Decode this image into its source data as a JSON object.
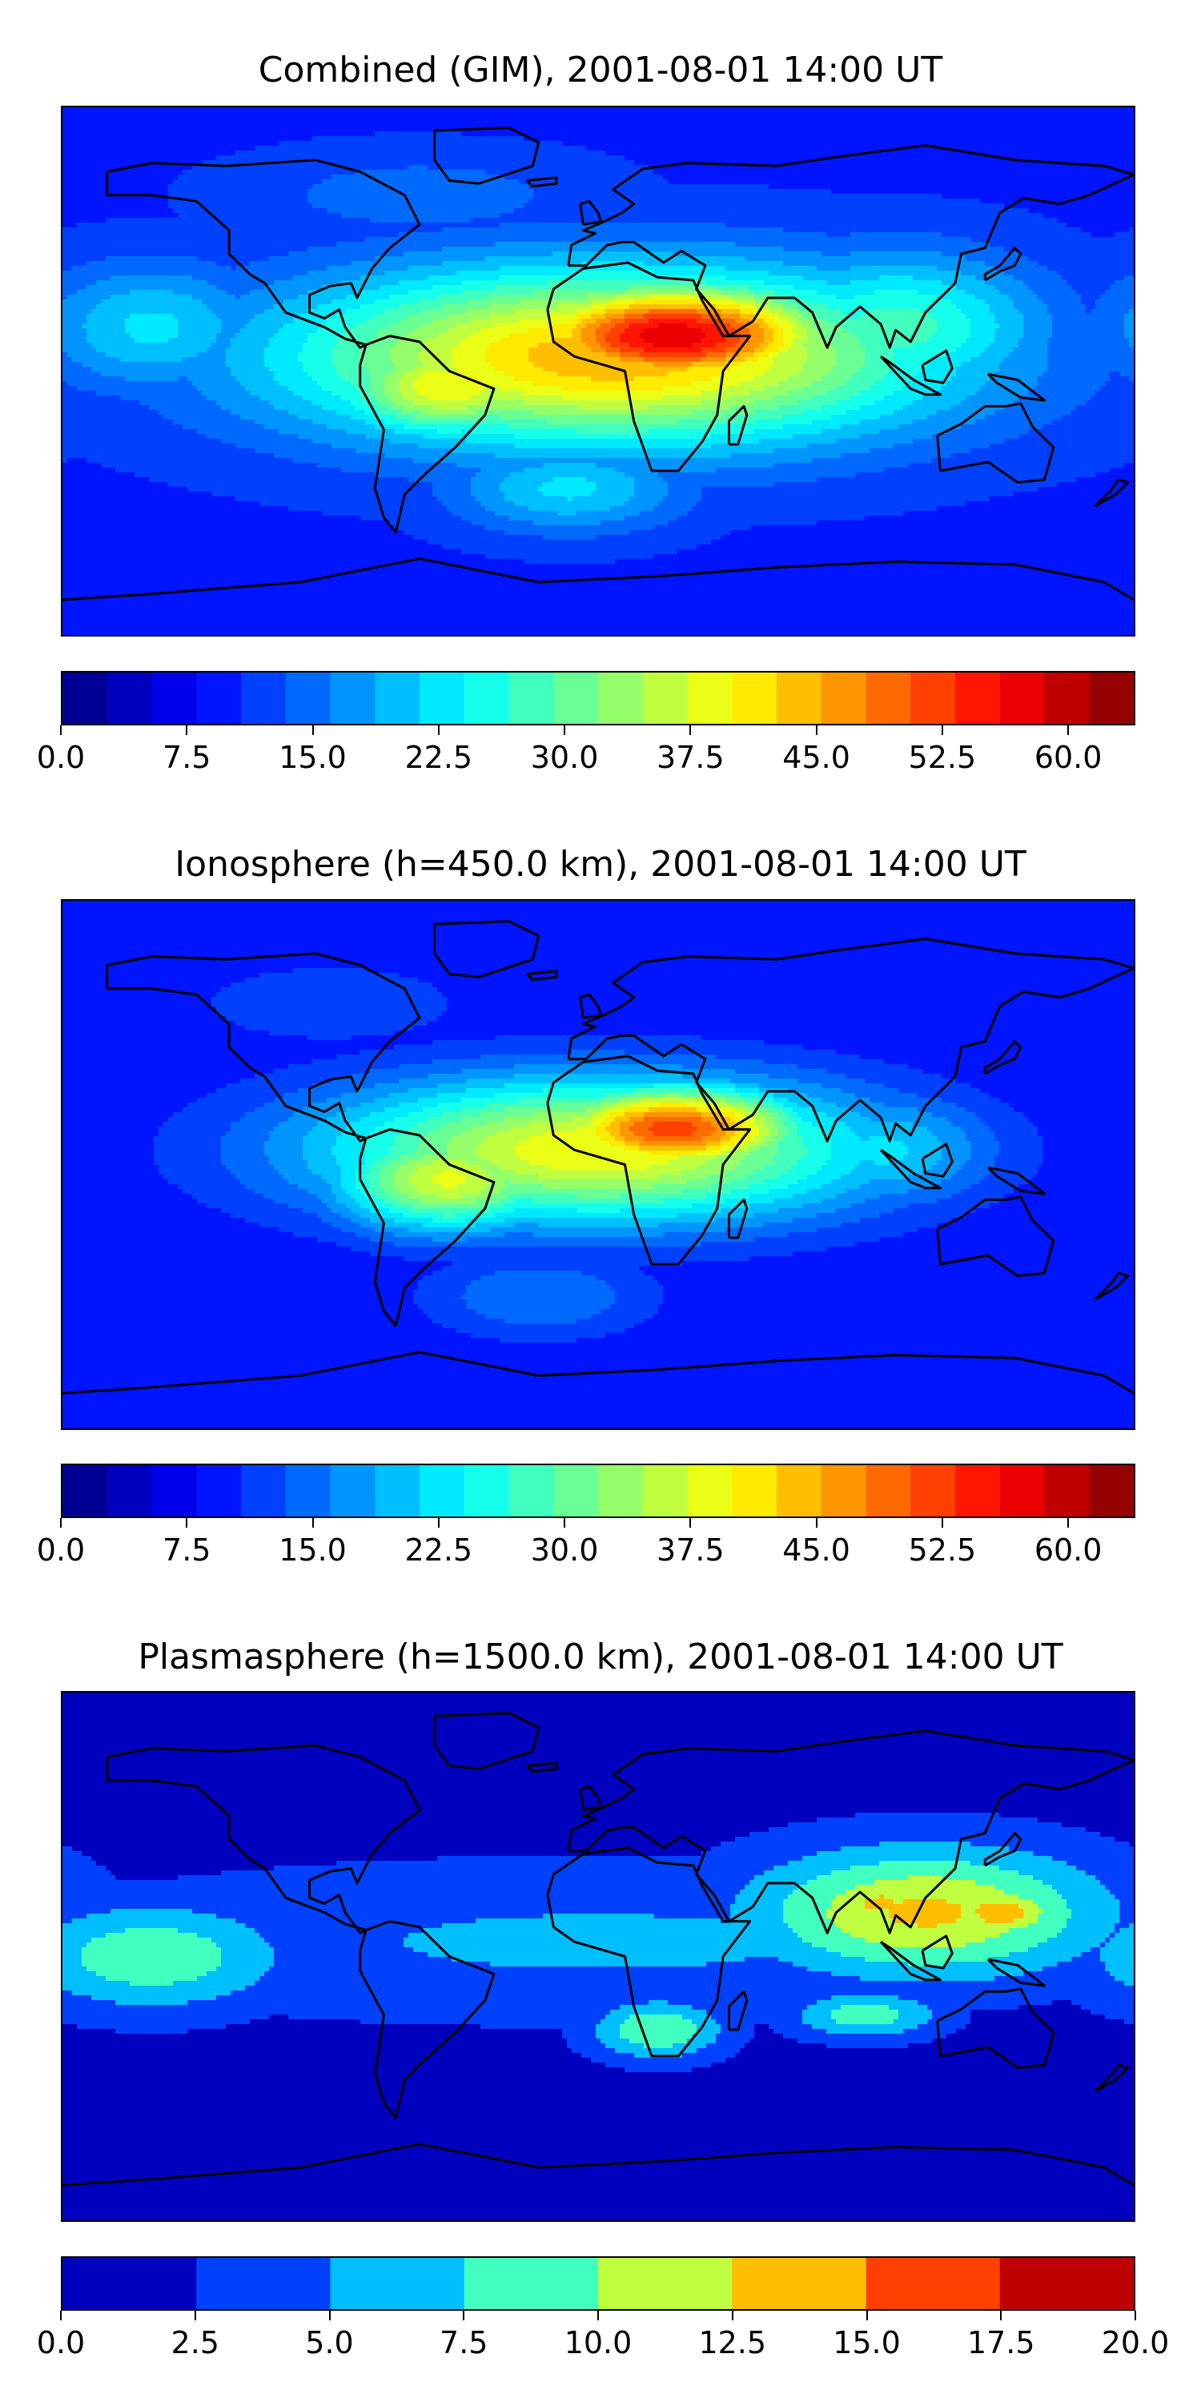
{
  "chart_data": [
    {
      "type": "heatmap",
      "title": "Combined (GIM), 2001-08-01 14:00 UT",
      "xlabel": "",
      "ylabel": "",
      "colorbar": {
        "vmin": 0.0,
        "vmax": 64.0,
        "levels": 24,
        "ticks": [
          "0.0",
          "7.5",
          "15.0",
          "22.5",
          "30.0",
          "37.5",
          "45.0",
          "52.5",
          "60.0"
        ],
        "tick_values": [
          0.0,
          7.5,
          15.0,
          22.5,
          30.0,
          37.5,
          45.0,
          52.5,
          60.0
        ],
        "colormap": "jet"
      },
      "background_level": 10,
      "features": [
        {
          "lon": 5,
          "lat": 5,
          "value": 45,
          "rlon": 110,
          "rlat": 30
        },
        {
          "lon": 25,
          "lat": 12,
          "value": 58,
          "rlon": 55,
          "rlat": 18
        },
        {
          "lon": -50,
          "lat": -5,
          "value": 40,
          "rlon": 40,
          "rlat": 18
        },
        {
          "lon": 100,
          "lat": 15,
          "value": 28,
          "rlon": 50,
          "rlat": 25
        },
        {
          "lon": -150,
          "lat": 15,
          "value": 22,
          "rlon": 40,
          "rlat": 22
        },
        {
          "lon": -10,
          "lat": -40,
          "value": 22,
          "rlon": 40,
          "rlat": 15
        },
        {
          "lon": -60,
          "lat": 60,
          "value": 15,
          "rlon": 60,
          "rlat": 15
        }
      ]
    },
    {
      "type": "heatmap",
      "title": "Ionosphere  (h=450.0 km), 2001-08-01 14:00 UT",
      "xlabel": "",
      "ylabel": "",
      "colorbar": {
        "vmin": 0.0,
        "vmax": 64.0,
        "levels": 24,
        "ticks": [
          "0.0",
          "7.5",
          "15.0",
          "22.5",
          "30.0",
          "37.5",
          "45.0",
          "52.5",
          "60.0"
        ],
        "tick_values": [
          0.0,
          7.5,
          15.0,
          22.5,
          30.0,
          37.5,
          45.0,
          52.5,
          60.0
        ],
        "colormap": "jet"
      },
      "background_level": 8,
      "features": [
        {
          "lon": 0,
          "lat": 5,
          "value": 40,
          "rlon": 95,
          "rlat": 25
        },
        {
          "lon": 25,
          "lat": 12,
          "value": 52,
          "rlon": 45,
          "rlat": 15
        },
        {
          "lon": -50,
          "lat": -5,
          "value": 38,
          "rlon": 40,
          "rlat": 18
        },
        {
          "lon": 95,
          "lat": 5,
          "value": 22,
          "rlon": 40,
          "rlat": 20
        },
        {
          "lon": -20,
          "lat": -45,
          "value": 16,
          "rlon": 40,
          "rlat": 15
        },
        {
          "lon": -90,
          "lat": 55,
          "value": 13,
          "rlon": 50,
          "rlat": 15
        }
      ]
    },
    {
      "type": "heatmap",
      "title": "Plasmasphere (h=1500.0 km), 2001-08-01 14:00 UT",
      "xlabel": "",
      "ylabel": "",
      "colorbar": {
        "vmin": 0.0,
        "vmax": 20.0,
        "levels": 8,
        "ticks": [
          "0.0",
          "2.5",
          "5.0",
          "7.5",
          "10.0",
          "12.5",
          "15.0",
          "17.5",
          "20.0"
        ],
        "tick_values": [
          0.0,
          2.5,
          5.0,
          7.5,
          10.0,
          12.5,
          15.0,
          17.5,
          20.0
        ],
        "colormap": "jet"
      },
      "background_level": 1.5,
      "features": [
        {
          "lon": 0,
          "lat": 5,
          "value": 5.5,
          "rlon": 180,
          "rlat": 25
        },
        {
          "lon": 110,
          "lat": 15,
          "value": 13,
          "rlon": 60,
          "rlat": 22
        },
        {
          "lon": 135,
          "lat": 15,
          "value": 14,
          "rlon": 22,
          "rlat": 10
        },
        {
          "lon": 95,
          "lat": 18,
          "value": 13.5,
          "rlon": 18,
          "rlat": 8
        },
        {
          "lon": -150,
          "lat": 0,
          "value": 9.5,
          "rlon": 45,
          "rlat": 18
        },
        {
          "lon": 20,
          "lat": -25,
          "value": 10,
          "rlon": 22,
          "rlat": 10
        },
        {
          "lon": 90,
          "lat": -20,
          "value": 9,
          "rlon": 25,
          "rlat": 8
        },
        {
          "lon": -50,
          "lat": -20,
          "value": 2,
          "rlon": 20,
          "rlat": 25
        },
        {
          "lon": 0,
          "lat": 60,
          "value": 1.5,
          "rlon": 100,
          "rlat": 12
        }
      ]
    }
  ],
  "coastline": {
    "north_america": [
      [
        -165,
        68
      ],
      [
        -150,
        71
      ],
      [
        -125,
        70
      ],
      [
        -95,
        72
      ],
      [
        -80,
        68
      ],
      [
        -65,
        60
      ],
      [
        -60,
        50
      ],
      [
        -70,
        42
      ],
      [
        -76,
        35
      ],
      [
        -81,
        25
      ],
      [
        -83,
        30
      ],
      [
        -90,
        29
      ],
      [
        -97,
        26
      ],
      [
        -97,
        20
      ],
      [
        -92,
        18
      ],
      [
        -87,
        21
      ],
      [
        -85,
        15
      ],
      [
        -80,
        8
      ],
      [
        -78,
        9
      ],
      [
        -85,
        11
      ],
      [
        -92,
        15
      ],
      [
        -105,
        20
      ],
      [
        -112,
        30
      ],
      [
        -117,
        33
      ],
      [
        -124,
        40
      ],
      [
        -124,
        48
      ],
      [
        -135,
        58
      ],
      [
        -150,
        60
      ],
      [
        -165,
        60
      ],
      [
        -165,
        68
      ]
    ],
    "greenland": [
      [
        -55,
        82
      ],
      [
        -30,
        83
      ],
      [
        -20,
        78
      ],
      [
        -22,
        70
      ],
      [
        -40,
        64
      ],
      [
        -50,
        65
      ],
      [
        -55,
        72
      ],
      [
        -55,
        82
      ]
    ],
    "south_america": [
      [
        -78,
        9
      ],
      [
        -70,
        12
      ],
      [
        -60,
        10
      ],
      [
        -50,
        0
      ],
      [
        -35,
        -6
      ],
      [
        -38,
        -15
      ],
      [
        -48,
        -26
      ],
      [
        -58,
        -35
      ],
      [
        -65,
        -42
      ],
      [
        -68,
        -55
      ],
      [
        -72,
        -50
      ],
      [
        -75,
        -40
      ],
      [
        -72,
        -20
      ],
      [
        -80,
        -5
      ],
      [
        -80,
        2
      ],
      [
        -78,
        9
      ]
    ],
    "africa": [
      [
        -17,
        21
      ],
      [
        -15,
        28
      ],
      [
        -5,
        35
      ],
      [
        10,
        37
      ],
      [
        20,
        32
      ],
      [
        32,
        31
      ],
      [
        35,
        24
      ],
      [
        42,
        12
      ],
      [
        51,
        12
      ],
      [
        42,
        0
      ],
      [
        40,
        -15
      ],
      [
        35,
        -24
      ],
      [
        27,
        -34
      ],
      [
        18,
        -34
      ],
      [
        12,
        -17
      ],
      [
        9,
        0
      ],
      [
        -8,
        5
      ],
      [
        -15,
        10
      ],
      [
        -17,
        21
      ]
    ],
    "eurasia": [
      [
        -10,
        36
      ],
      [
        -9,
        43
      ],
      [
        -1,
        47
      ],
      [
        -5,
        48
      ],
      [
        2,
        51
      ],
      [
        8,
        54
      ],
      [
        12,
        57
      ],
      [
        5,
        62
      ],
      [
        15,
        69
      ],
      [
        30,
        71
      ],
      [
        60,
        70
      ],
      [
        80,
        73
      ],
      [
        110,
        77
      ],
      [
        140,
        72
      ],
      [
        170,
        70
      ],
      [
        180,
        67
      ],
      [
        165,
        60
      ],
      [
        155,
        57
      ],
      [
        143,
        59
      ],
      [
        135,
        54
      ],
      [
        130,
        42
      ],
      [
        122,
        40
      ],
      [
        120,
        30
      ],
      [
        110,
        20
      ],
      [
        105,
        10
      ],
      [
        100,
        14
      ],
      [
        98,
        8
      ],
      [
        95,
        16
      ],
      [
        88,
        22
      ],
      [
        80,
        15
      ],
      [
        77,
        8
      ],
      [
        72,
        20
      ],
      [
        66,
        25
      ],
      [
        57,
        25
      ],
      [
        52,
        17
      ],
      [
        44,
        12
      ],
      [
        39,
        21
      ],
      [
        33,
        28
      ],
      [
        36,
        36
      ],
      [
        28,
        41
      ],
      [
        22,
        37
      ],
      [
        12,
        44
      ],
      [
        8,
        44
      ],
      [
        3,
        43
      ],
      [
        -4,
        36
      ],
      [
        -10,
        36
      ]
    ],
    "australia": [
      [
        114,
        -22
      ],
      [
        122,
        -18
      ],
      [
        130,
        -12
      ],
      [
        137,
        -12
      ],
      [
        142,
        -11
      ],
      [
        146,
        -19
      ],
      [
        153,
        -26
      ],
      [
        150,
        -37
      ],
      [
        141,
        -38
      ],
      [
        131,
        -31
      ],
      [
        115,
        -34
      ],
      [
        114,
        -22
      ]
    ],
    "antarctica": [
      [
        -180,
        -78
      ],
      [
        -150,
        -76
      ],
      [
        -100,
        -72
      ],
      [
        -60,
        -64
      ],
      [
        -20,
        -72
      ],
      [
        20,
        -70
      ],
      [
        60,
        -67
      ],
      [
        100,
        -65
      ],
      [
        140,
        -66
      ],
      [
        170,
        -72
      ],
      [
        180,
        -78
      ]
    ],
    "uk": [
      [
        -5,
        50
      ],
      [
        1,
        51
      ],
      [
        0,
        54
      ],
      [
        -3,
        58
      ],
      [
        -6,
        57
      ],
      [
        -5,
        50
      ]
    ],
    "japan": [
      [
        130,
        31
      ],
      [
        135,
        34
      ],
      [
        140,
        36
      ],
      [
        142,
        40
      ],
      [
        140,
        42
      ],
      [
        135,
        36
      ],
      [
        130,
        33
      ],
      [
        130,
        31
      ]
    ],
    "madagascar": [
      [
        44,
        -25
      ],
      [
        47,
        -25
      ],
      [
        50,
        -15
      ],
      [
        49,
        -12
      ],
      [
        44,
        -17
      ],
      [
        44,
        -25
      ]
    ],
    "newzealand": [
      [
        167,
        -46
      ],
      [
        172,
        -41
      ],
      [
        175,
        -37
      ],
      [
        178,
        -38
      ],
      [
        174,
        -42
      ],
      [
        167,
        -46
      ]
    ],
    "indonesia": [
      [
        95,
        5
      ],
      [
        105,
        -6
      ],
      [
        110,
        -8
      ],
      [
        115,
        -8
      ],
      [
        106,
        -3
      ],
      [
        98,
        3
      ],
      [
        95,
        5
      ]
    ],
    "borneo": [
      [
        109,
        2
      ],
      [
        117,
        7
      ],
      [
        119,
        1
      ],
      [
        116,
        -4
      ],
      [
        110,
        -3
      ],
      [
        109,
        2
      ]
    ],
    "newguinea": [
      [
        131,
        -1
      ],
      [
        141,
        -3
      ],
      [
        150,
        -10
      ],
      [
        142,
        -9
      ],
      [
        134,
        -4
      ],
      [
        131,
        -1
      ]
    ],
    "iceland": [
      [
        -24,
        65
      ],
      [
        -14,
        66
      ],
      [
        -14,
        64
      ],
      [
        -22,
        63
      ],
      [
        -24,
        65
      ]
    ]
  }
}
